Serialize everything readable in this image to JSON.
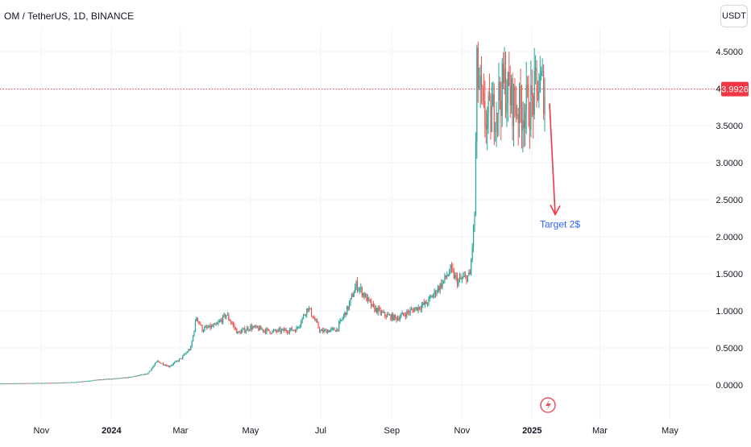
{
  "header": {
    "symbol_title": "OM / TetherUS, 1D, BINANCE",
    "currency_button": "USDT"
  },
  "price_line": {
    "label": "3.9926",
    "value": 3.9926,
    "color": "#f23645"
  },
  "annotation": {
    "text": "Target 2$",
    "color": "#2962ff",
    "arrow_color": "#f23645",
    "arrow_from_value": 3.8,
    "arrow_to_value": 2.3
  },
  "event_icon": "lightning-icon",
  "colors": {
    "up": "#26a69a",
    "down": "#ef5350",
    "grid": "#f0f3fa",
    "axis_text": "#131722"
  },
  "chart_data": {
    "type": "candlestick",
    "title": "OM / TetherUS, 1D, BINANCE",
    "xlabel": "",
    "ylabel": "",
    "ylim": [
      -0.15,
      4.8
    ],
    "y_ticks": [
      "4.5000",
      "4.0000",
      "3.5000",
      "3.0000",
      "2.5000",
      "2.0000",
      "1.5000",
      "1.0000",
      "0.5000",
      "0.0000"
    ],
    "x_ticks": [
      "Nov",
      "2024",
      "Mar",
      "May",
      "Jul",
      "Sep",
      "Nov",
      "2025",
      "Mar",
      "May"
    ],
    "x_tick_dates": [
      "2023-11-01",
      "2024-01-01",
      "2024-03-01",
      "2024-05-01",
      "2024-07-01",
      "2024-09-01",
      "2024-11-01",
      "2025-01-01",
      "2025-03-01",
      "2025-05-01"
    ],
    "date_range": [
      "2023-09-26",
      "2025-01-12"
    ],
    "close_path": [
      [
        "2023-09-26",
        0.02
      ],
      [
        "2023-11-15",
        0.03
      ],
      [
        "2023-12-01",
        0.04
      ],
      [
        "2023-12-20",
        0.07
      ],
      [
        "2024-01-15",
        0.1
      ],
      [
        "2024-02-01",
        0.15
      ],
      [
        "2024-02-10",
        0.32
      ],
      [
        "2024-02-20",
        0.25
      ],
      [
        "2024-03-01",
        0.35
      ],
      [
        "2024-03-10",
        0.5
      ],
      [
        "2024-03-15",
        0.92
      ],
      [
        "2024-03-20",
        0.75
      ],
      [
        "2024-04-01",
        0.8
      ],
      [
        "2024-04-10",
        0.95
      ],
      [
        "2024-04-20",
        0.7
      ],
      [
        "2024-05-01",
        0.78
      ],
      [
        "2024-05-20",
        0.72
      ],
      [
        "2024-06-10",
        0.75
      ],
      [
        "2024-06-20",
        1.05
      ],
      [
        "2024-07-01",
        0.72
      ],
      [
        "2024-07-15",
        0.75
      ],
      [
        "2024-07-25",
        1.05
      ],
      [
        "2024-08-01",
        1.35
      ],
      [
        "2024-08-05",
        1.28
      ],
      [
        "2024-08-15",
        1.05
      ],
      [
        "2024-08-25",
        0.95
      ],
      [
        "2024-09-05",
        0.9
      ],
      [
        "2024-09-20",
        1.02
      ],
      [
        "2024-10-01",
        1.1
      ],
      [
        "2024-10-15",
        1.38
      ],
      [
        "2024-10-22",
        1.55
      ],
      [
        "2024-10-28",
        1.4
      ],
      [
        "2024-11-08",
        1.48
      ],
      [
        "2024-11-12",
        2.3
      ],
      [
        "2024-11-14",
        4.2
      ],
      [
        "2024-11-20",
        3.6
      ],
      [
        "2024-11-26",
        3.6
      ],
      [
        "2024-12-02",
        3.85
      ],
      [
        "2024-12-08",
        4.05
      ],
      [
        "2024-12-14",
        3.85
      ],
      [
        "2024-12-22",
        3.7
      ],
      [
        "2025-01-01",
        3.8
      ],
      [
        "2025-01-06",
        4.05
      ],
      [
        "2025-01-12",
        3.99
      ]
    ]
  }
}
